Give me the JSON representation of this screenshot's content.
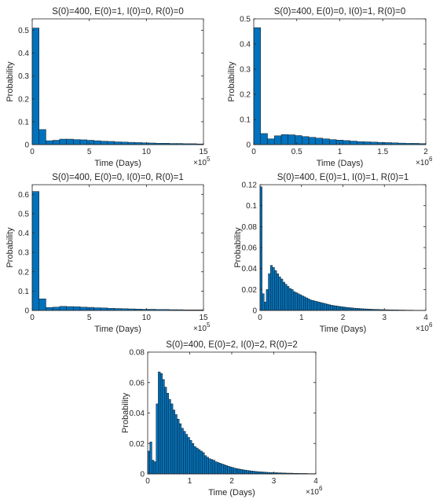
{
  "figure": {
    "bar_color": "#0072BD",
    "edge_color": "#1a1a1a",
    "axis_color": "#262626"
  },
  "chart_data": [
    {
      "type": "bar",
      "title": "S(0)=400, E(0)=1, I(0)=0, R(0)=0",
      "xlabel": "Time (Days)",
      "ylabel": "Probability",
      "x_multiplier": "×10",
      "x_exponent": "5",
      "xlim": [
        0,
        15
      ],
      "ylim": [
        0,
        0.55
      ],
      "xticks": [
        0,
        5,
        10,
        15
      ],
      "xtick_labels": [
        "0",
        "5",
        "10",
        "15"
      ],
      "yticks": [
        0,
        0.1,
        0.2,
        0.3,
        0.4,
        0.5
      ],
      "ytick_labels": [
        "0",
        "0.1",
        "0.2",
        "0.3",
        "0.4",
        "0.5"
      ],
      "bin_start": 0,
      "bin_width": 0.6,
      "values": [
        0.51,
        0.066,
        0.017,
        0.019,
        0.024,
        0.024,
        0.022,
        0.021,
        0.019,
        0.017,
        0.015,
        0.014,
        0.012,
        0.011,
        0.01,
        0.009,
        0.008,
        0.007,
        0.006,
        0.006,
        0.005,
        0.005,
        0.004,
        0.004,
        0.003
      ]
    },
    {
      "type": "bar",
      "title": "S(0)=400, E(0)=0, I(0)=1, R(0)=0",
      "xlabel": "Time (Days)",
      "ylabel": "Probability",
      "x_multiplier": "×10",
      "x_exponent": "6",
      "xlim": [
        0,
        2
      ],
      "ylim": [
        0,
        0.5
      ],
      "xticks": [
        0,
        0.5,
        1,
        1.5,
        2
      ],
      "xtick_labels": [
        "0",
        "0.5",
        "1",
        "1.5",
        "2"
      ],
      "yticks": [
        0,
        0.1,
        0.2,
        0.3,
        0.4,
        0.5
      ],
      "ytick_labels": [
        "0",
        "0.1",
        "0.2",
        "0.3",
        "0.4",
        "0.5"
      ],
      "bin_start": 0,
      "bin_width": 0.08,
      "values": [
        0.465,
        0.044,
        0.023,
        0.035,
        0.04,
        0.039,
        0.036,
        0.032,
        0.029,
        0.026,
        0.023,
        0.02,
        0.018,
        0.016,
        0.014,
        0.012,
        0.011,
        0.01,
        0.009,
        0.008,
        0.007,
        0.006,
        0.005,
        0.005,
        0.004
      ]
    },
    {
      "type": "bar",
      "title": "S(0)=400, E(0)=0, I(0)=0, R(0)=1",
      "xlabel": "Time (Days)",
      "ylabel": "Probability",
      "x_multiplier": "×10",
      "x_exponent": "5",
      "xlim": [
        0,
        15
      ],
      "ylim": [
        0,
        0.65
      ],
      "xticks": [
        0,
        5,
        10,
        15
      ],
      "xtick_labels": [
        "0",
        "5",
        "10",
        "15"
      ],
      "yticks": [
        0,
        0.1,
        0.2,
        0.3,
        0.4,
        0.5,
        0.6
      ],
      "ytick_labels": [
        "0",
        "0.1",
        "0.2",
        "0.3",
        "0.4",
        "0.5",
        "0.6"
      ],
      "bin_start": 0,
      "bin_width": 0.6,
      "values": [
        0.615,
        0.06,
        0.015,
        0.017,
        0.021,
        0.02,
        0.019,
        0.017,
        0.016,
        0.014,
        0.013,
        0.011,
        0.01,
        0.009,
        0.008,
        0.007,
        0.006,
        0.006,
        0.005,
        0.005,
        0.004,
        0.004,
        0.003,
        0.003,
        0.003
      ]
    },
    {
      "type": "bar",
      "title": "S(0)=400, E(0)=1, I(0)=1, R(0)=1",
      "xlabel": "Time (Days)",
      "ylabel": "Probability",
      "x_multiplier": "×10",
      "x_exponent": "6",
      "xlim": [
        0,
        4
      ],
      "ylim": [
        0,
        0.12
      ],
      "xticks": [
        0,
        1,
        2,
        3,
        4
      ],
      "xtick_labels": [
        "0",
        "1",
        "2",
        "3",
        "4"
      ],
      "yticks": [
        0,
        0.02,
        0.04,
        0.06,
        0.08,
        0.1,
        0.12
      ],
      "ytick_labels": [
        "0",
        "0.02",
        "0.04",
        "0.06",
        "0.08",
        "0.1",
        "0.12"
      ],
      "bin_start": 0,
      "bin_width": 0.05,
      "values": [
        0.118,
        0.016,
        0.008,
        0.02,
        0.035,
        0.043,
        0.041,
        0.038,
        0.035,
        0.032,
        0.03,
        0.027,
        0.025,
        0.023,
        0.021,
        0.02,
        0.018,
        0.017,
        0.016,
        0.015,
        0.014,
        0.013,
        0.012,
        0.011,
        0.01,
        0.0095,
        0.009,
        0.0085,
        0.008,
        0.0075,
        0.007,
        0.0065,
        0.006,
        0.0055,
        0.005,
        0.0047,
        0.0044,
        0.0041,
        0.0038,
        0.0035,
        0.0033,
        0.003,
        0.0028,
        0.0026,
        0.0024,
        0.0022,
        0.002,
        0.0019,
        0.0018,
        0.0016,
        0.0015,
        0.0014,
        0.0013,
        0.0012,
        0.0011,
        0.001,
        0.001,
        0.0009,
        0.0008,
        0.0008,
        0.0007,
        0.0007,
        0.0006,
        0.0006,
        0.0005,
        0.0005,
        0.0005,
        0.0004,
        0.0004,
        0.0004,
        0.0003,
        0.0003,
        0.0003,
        0.0003,
        0.0002,
        0.0002,
        0.0002,
        0.0002,
        0.0002,
        0.0002
      ]
    },
    {
      "type": "bar",
      "title": "S(0)=400, E(0)=2, I(0)=2, R(0)=2",
      "xlabel": "Time (Days)",
      "ylabel": "Probability",
      "x_multiplier": "×10",
      "x_exponent": "6",
      "xlim": [
        0,
        4
      ],
      "ylim": [
        0,
        0.08
      ],
      "xticks": [
        0,
        1,
        2,
        3,
        4
      ],
      "xtick_labels": [
        "0",
        "1",
        "2",
        "3",
        "4"
      ],
      "yticks": [
        0,
        0.02,
        0.04,
        0.06,
        0.08
      ],
      "ytick_labels": [
        "0",
        "0.02",
        "0.04",
        "0.06",
        "0.08"
      ],
      "bin_start": 0,
      "bin_width": 0.05,
      "values": [
        0.015,
        0.021,
        0.009,
        0.008,
        0.046,
        0.067,
        0.066,
        0.062,
        0.057,
        0.053,
        0.049,
        0.046,
        0.042,
        0.039,
        0.036,
        0.033,
        0.03,
        0.028,
        0.026,
        0.024,
        0.022,
        0.02,
        0.018,
        0.017,
        0.016,
        0.015,
        0.014,
        0.012,
        0.011,
        0.01,
        0.0095,
        0.009,
        0.008,
        0.0075,
        0.007,
        0.0065,
        0.006,
        0.0055,
        0.005,
        0.0046,
        0.0042,
        0.0038,
        0.0035,
        0.0032,
        0.003,
        0.0027,
        0.0025,
        0.0023,
        0.0021,
        0.0019,
        0.0018,
        0.0016,
        0.0015,
        0.0014,
        0.0013,
        0.0012,
        0.0011,
        0.001,
        0.0009,
        0.0009,
        0.0008,
        0.0008,
        0.0007,
        0.0007,
        0.0006,
        0.0006,
        0.0005,
        0.0005,
        0.0005,
        0.0004,
        0.0004,
        0.0004,
        0.0003,
        0.0003,
        0.0003,
        0.0003,
        0.0002,
        0.0002,
        0.0002,
        0.0002
      ]
    }
  ]
}
